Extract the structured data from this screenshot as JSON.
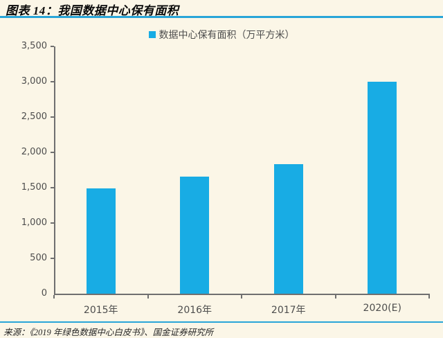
{
  "header": {
    "title": "图表 14：我国数据中心保有面积"
  },
  "legend": {
    "label": "数据中心保有面积（万平方米）"
  },
  "chart_data": {
    "type": "bar",
    "title": "我国数据中心保有面积",
    "categories": [
      "2015年",
      "2016年",
      "2017年",
      "2020(E)"
    ],
    "values": [
      1490,
      1660,
      1830,
      3000
    ],
    "series": [
      {
        "name": "数据中心保有面积（万平方米）",
        "values": [
          1490,
          1660,
          1830,
          3000
        ]
      }
    ],
    "xlabel": "",
    "ylabel": "",
    "ylim": [
      0,
      3500
    ],
    "yticks": [
      0,
      500,
      1000,
      1500,
      2000,
      2500,
      3000,
      3500
    ],
    "grid": false,
    "legend_position": "top-center",
    "bar_color": "#18ACE4"
  },
  "footer": {
    "source": "来源：《2019 年绿色数据中心白皮书》、国金证券研究所"
  },
  "colors": {
    "background": "#FBF6E7",
    "accent_blue": "#18ACE4",
    "rule_blue": "#28A5D8",
    "axis_gray": "#6F6F6F",
    "label_gray": "#4D4D4D",
    "title_black": "#0A0A0A"
  }
}
